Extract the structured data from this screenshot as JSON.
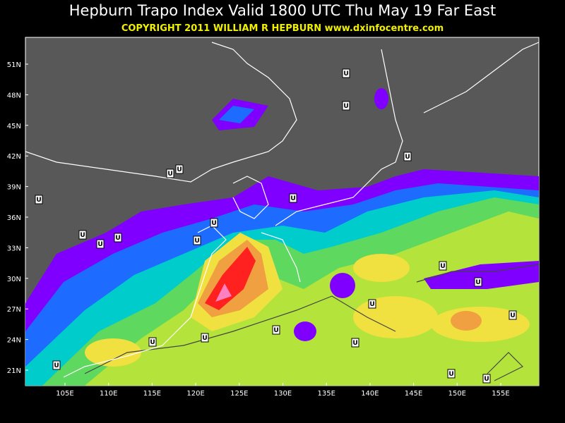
{
  "header": {
    "title": "Hepburn Trapo Index Valid 1800 UTC Thu May 19 Far East",
    "subtitle": "COPYRIGHT 2011   WILLIAM R HEPBURN   www.dxinfocentre.com"
  },
  "map": {
    "lat_labels": [
      "51N",
      "48N",
      "45N",
      "42N",
      "39N",
      "36N",
      "33N",
      "30N",
      "27N",
      "24N",
      "21N"
    ],
    "lon_labels": [
      "105E",
      "110E",
      "115E",
      "120E",
      "125E",
      "130E",
      "135E",
      "140E",
      "145E",
      "150E",
      "155E"
    ],
    "markers": [
      "U",
      "U",
      "U",
      "U",
      "U",
      "U",
      "U",
      "U",
      "U",
      "U",
      "U",
      "U",
      "U",
      "U",
      "U",
      "U",
      "U",
      "U",
      "U",
      "U",
      "U",
      "U",
      "U"
    ]
  }
}
